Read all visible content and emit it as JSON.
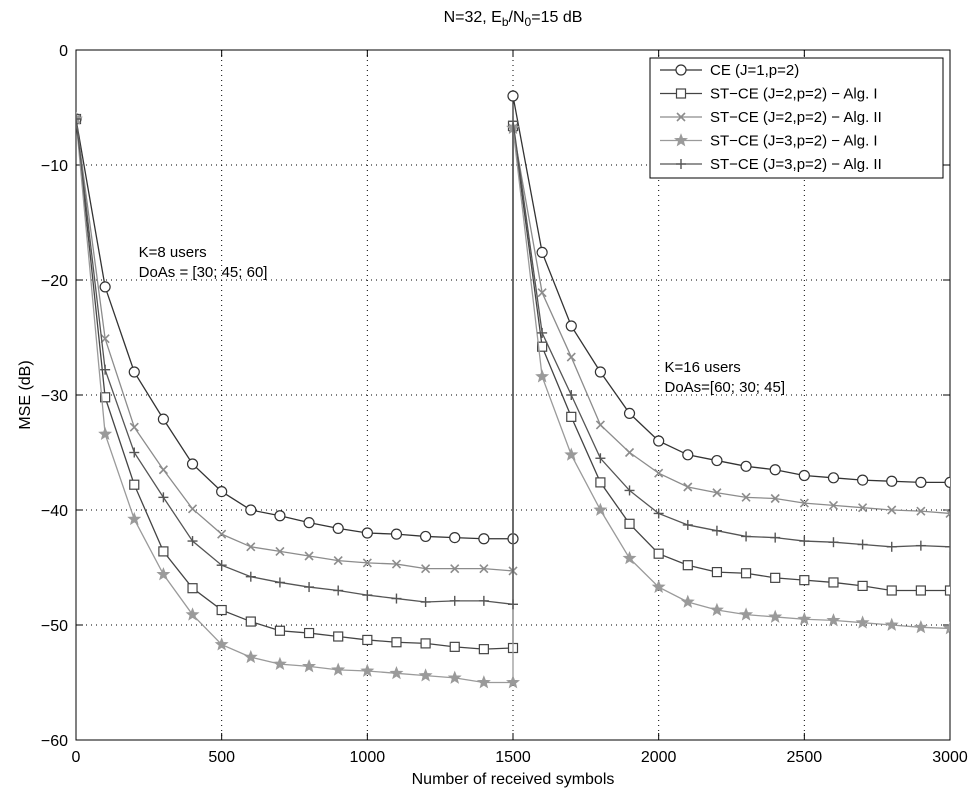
{
  "chart_data": {
    "type": "line",
    "title_parts": {
      "a": "N=32, E",
      "b": "b",
      "c": "/N",
      "d": "0",
      "e": "=15 dB"
    },
    "xlabel": "Number of received symbols",
    "ylabel": "MSE (dB)",
    "xlim": [
      0,
      3000
    ],
    "ylim": [
      -60,
      0
    ],
    "xticks": [
      0,
      500,
      1000,
      1500,
      2000,
      2500,
      3000
    ],
    "yticks": [
      0,
      -10,
      -20,
      -30,
      -40,
      -50,
      -60
    ],
    "ytick_labels": [
      "0",
      "−10",
      "−20",
      "−30",
      "−40",
      "−50",
      "−60"
    ],
    "grid": true,
    "legend_position": "top-right",
    "x": [
      0,
      100,
      200,
      300,
      400,
      500,
      600,
      700,
      800,
      900,
      1000,
      1100,
      1200,
      1300,
      1400,
      1500,
      1500,
      1600,
      1700,
      1800,
      1900,
      2000,
      2100,
      2200,
      2300,
      2400,
      2500,
      2600,
      2700,
      2800,
      2900,
      3000
    ],
    "series": [
      {
        "name": "CE (J=1,p=2)",
        "marker": "circle",
        "color": "#333333",
        "values": [
          -6,
          -20.6,
          -28,
          -32.1,
          -36,
          -38.4,
          -40,
          -40.5,
          -41.1,
          -41.6,
          -42,
          -42.1,
          -42.3,
          -42.4,
          -42.5,
          -42.5,
          -4,
          -17.6,
          -24,
          -28,
          -31.6,
          -34,
          -35.2,
          -35.7,
          -36.2,
          -36.5,
          -37,
          -37.2,
          -37.4,
          -37.5,
          -37.6,
          -37.6
        ]
      },
      {
        "name": "ST−CE (J=2,p=2) − Alg. I",
        "marker": "square",
        "color": "#444444",
        "values": [
          -6,
          -30.2,
          -37.8,
          -43.6,
          -46.8,
          -48.7,
          -49.7,
          -50.5,
          -50.7,
          -51,
          -51.3,
          -51.5,
          -51.6,
          -51.9,
          -52.1,
          -52,
          -6.6,
          -25.8,
          -31.9,
          -37.6,
          -41.2,
          -43.8,
          -44.8,
          -45.4,
          -45.5,
          -45.9,
          -46.1,
          -46.3,
          -46.6,
          -47,
          -47,
          -47
        ]
      },
      {
        "name": "ST−CE (J=2,p=2) − Alg. II",
        "marker": "x",
        "color": "#8c8c8c",
        "values": [
          -6,
          -25.1,
          -32.8,
          -36.5,
          -39.9,
          -42.1,
          -43.2,
          -43.6,
          -44,
          -44.4,
          -44.6,
          -44.7,
          -45.1,
          -45.1,
          -45.1,
          -45.3,
          -6.8,
          -21.1,
          -26.7,
          -32.6,
          -35,
          -36.8,
          -38,
          -38.5,
          -38.9,
          -39,
          -39.4,
          -39.6,
          -39.8,
          -40,
          -40.1,
          -40.3
        ]
      },
      {
        "name": "ST−CE (J=3,p=2) − Alg. I",
        "marker": "star",
        "color": "#9a9a9a",
        "values": [
          -6,
          -33.4,
          -40.8,
          -45.6,
          -49.1,
          -51.7,
          -52.8,
          -53.4,
          -53.6,
          -53.9,
          -54,
          -54.2,
          -54.4,
          -54.6,
          -55,
          -55,
          -6.8,
          -28.4,
          -35.2,
          -40,
          -44.2,
          -46.7,
          -48,
          -48.7,
          -49.1,
          -49.3,
          -49.5,
          -49.6,
          -49.8,
          -50,
          -50.2,
          -50.3
        ]
      },
      {
        "name": "ST−CE (J=3,p=2) − Alg. II",
        "marker": "plus",
        "color": "#555555",
        "values": [
          -6,
          -27.8,
          -35,
          -38.9,
          -42.7,
          -44.8,
          -45.8,
          -46.3,
          -46.7,
          -47,
          -47.4,
          -47.7,
          -48,
          -47.9,
          -47.9,
          -48.2,
          -6.2,
          -24.6,
          -30,
          -35.5,
          -38.3,
          -40.3,
          -41.3,
          -41.8,
          -42.3,
          -42.4,
          -42.7,
          -42.8,
          -43,
          -43.2,
          -43.1,
          -43.2
        ]
      }
    ],
    "annotations": [
      {
        "lines": [
          "K=8 users",
          "DoAs = [30; 45; 60]"
        ],
        "x": 215,
        "y": -18
      },
      {
        "lines": [
          "K=16 users",
          "DoAs=[60; 30; 45]"
        ],
        "x": 2020,
        "y": -28
      }
    ]
  }
}
